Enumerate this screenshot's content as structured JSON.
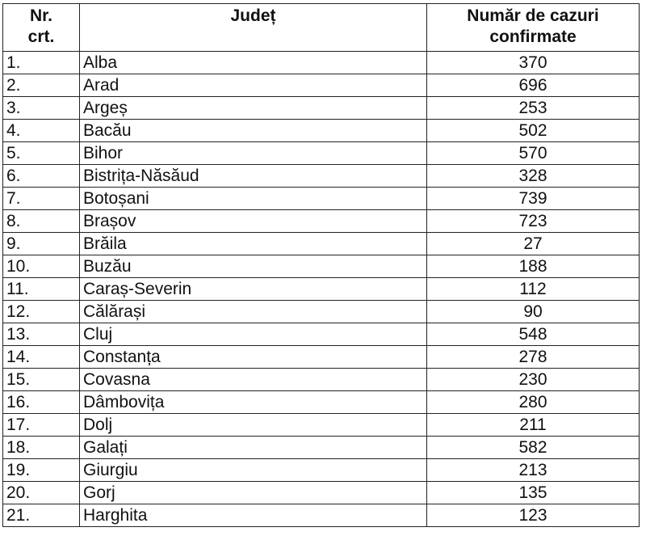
{
  "headers": {
    "nr": "Nr.\ncrt.",
    "judet": "Județ",
    "cazuri": "Număr de cazuri\nconfirmate"
  },
  "rows": [
    {
      "nr": "1.",
      "judet": "Alba",
      "cazuri": "370"
    },
    {
      "nr": "2.",
      "judet": "Arad",
      "cazuri": "696"
    },
    {
      "nr": "3.",
      "judet": "Argeș",
      "cazuri": "253"
    },
    {
      "nr": "4.",
      "judet": "Bacău",
      "cazuri": "502"
    },
    {
      "nr": "5.",
      "judet": "Bihor",
      "cazuri": "570"
    },
    {
      "nr": "6.",
      "judet": "Bistrița-Năsăud",
      "cazuri": "328"
    },
    {
      "nr": "7.",
      "judet": "Botoșani",
      "cazuri": "739"
    },
    {
      "nr": "8.",
      "judet": "Brașov",
      "cazuri": "723"
    },
    {
      "nr": "9.",
      "judet": "Brăila",
      "cazuri": "27"
    },
    {
      "nr": "10.",
      "judet": "Buzău",
      "cazuri": "188"
    },
    {
      "nr": "11.",
      "judet": "Caraș-Severin",
      "cazuri": "112"
    },
    {
      "nr": "12.",
      "judet": "Călărași",
      "cazuri": "90"
    },
    {
      "nr": "13.",
      "judet": "Cluj",
      "cazuri": "548"
    },
    {
      "nr": "14.",
      "judet": "Constanța",
      "cazuri": "278"
    },
    {
      "nr": "15.",
      "judet": "Covasna",
      "cazuri": "230"
    },
    {
      "nr": "16.",
      "judet": "Dâmbovița",
      "cazuri": "280"
    },
    {
      "nr": "17.",
      "judet": "Dolj",
      "cazuri": "211"
    },
    {
      "nr": "18.",
      "judet": "Galați",
      "cazuri": "582"
    },
    {
      "nr": "19.",
      "judet": "Giurgiu",
      "cazuri": "213"
    },
    {
      "nr": "20.",
      "judet": "Gorj",
      "cazuri": "135"
    },
    {
      "nr": "21.",
      "judet": "Harghita",
      "cazuri": "123"
    }
  ]
}
